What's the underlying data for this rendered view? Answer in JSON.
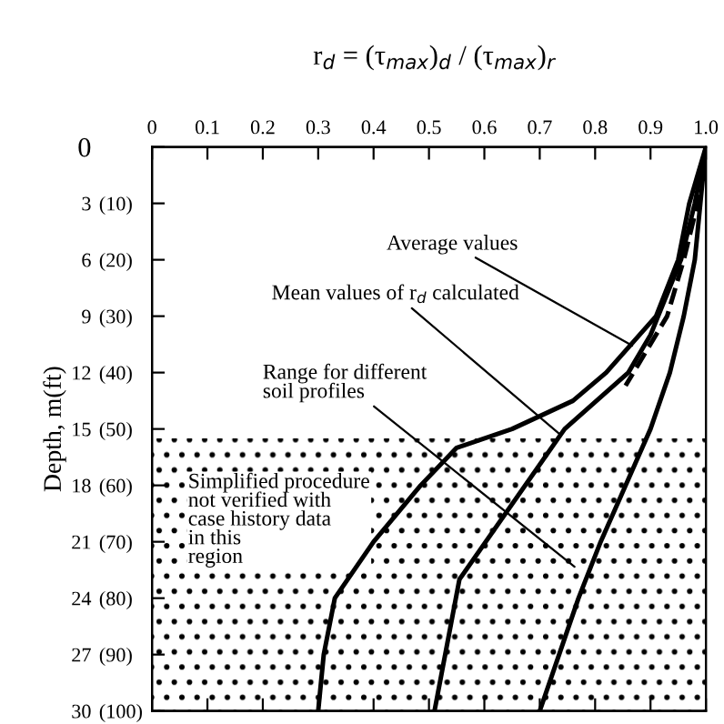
{
  "chart_data": {
    "type": "line",
    "title": "r$_{d}$ = (τ$_{max}$)$_{d}$ / (τ$_{max}$)$_{r}$",
    "ylabel": "Depth, m(ft)",
    "series": [
      {
        "color": "#000000",
        "line_style": "solid",
        "x": [
          1.0,
          0.97,
          0.95,
          0.91,
          0.82,
          0.76,
          0.65,
          0.55,
          0.485,
          0.4,
          0.33,
          0.31,
          0.3
        ],
        "values": [
          0,
          3,
          6,
          9,
          12,
          13.5,
          15,
          16,
          18,
          21,
          24,
          27,
          30
        ]
      },
      {
        "color": "#000000",
        "line_style": "solid",
        "x": [
          1.0,
          0.99,
          0.98,
          0.96,
          0.935,
          0.9,
          0.855,
          0.81,
          0.77,
          0.735,
          0.7
        ],
        "values": [
          0,
          3,
          6,
          9,
          12,
          15,
          18,
          21,
          24,
          27,
          30
        ]
      },
      {
        "color": "#000000",
        "line_style": "solid",
        "x": [
          1.0,
          0.98,
          0.955,
          0.9,
          0.86,
          0.745,
          0.555,
          0.51
        ],
        "values": [
          0,
          3,
          6,
          10,
          12,
          15,
          23,
          30
        ]
      },
      {
        "color": "#000000",
        "line_style": "dashed",
        "x": [
          1.0,
          0.985,
          0.96,
          0.93,
          0.855
        ],
        "values": [
          0,
          3,
          6,
          9,
          12.7
        ]
      }
    ],
    "xlim": [
      0,
      1.0
    ],
    "ylim": [
      30,
      0
    ],
    "xticks": [
      0,
      0.1,
      0.2,
      0.3,
      0.4,
      0.5,
      0.6,
      0.7,
      0.8,
      0.9,
      {
        "value": 1.0,
        "label": "1.0"
      }
    ],
    "yticks": [
      0,
      3,
      6,
      9,
      12,
      15,
      18,
      21,
      24,
      27,
      30
    ],
    "y2lim": [
      100,
      0
    ],
    "y2ticks": [
      {
        "value": 10,
        "label": "(10)"
      },
      {
        "value": 20,
        "label": "(20)"
      },
      {
        "value": 30,
        "label": "(30)"
      },
      {
        "value": 40,
        "label": "(40)"
      },
      {
        "value": 50,
        "label": "(50)"
      },
      {
        "value": 60,
        "label": "(60)"
      },
      {
        "value": 70,
        "label": "(70)"
      },
      {
        "value": 80,
        "label": "(80)"
      },
      {
        "value": 90,
        "label": "(90)"
      },
      {
        "value": 100,
        "label": "(100)"
      }
    ],
    "bands": [
      {
        "axis": "y",
        "from": 15.5,
        "to": 30,
        "label": "Simplified procedure\nnot verified with\ncase history data\nin this\nregion",
        "color": "#000000"
      }
    ],
    "annotations": [
      {
        "text": "Average values",
        "x": 0.875,
        "y": 10.7
      },
      {
        "text": "Mean values of r$_{d}$ calculated",
        "x": 0.745,
        "y": 15.5
      },
      {
        "text": "Range for different\nsoil profiles",
        "x": 0.77,
        "y": 22.5
      }
    ],
    "grid": false,
    "legend": false
  }
}
